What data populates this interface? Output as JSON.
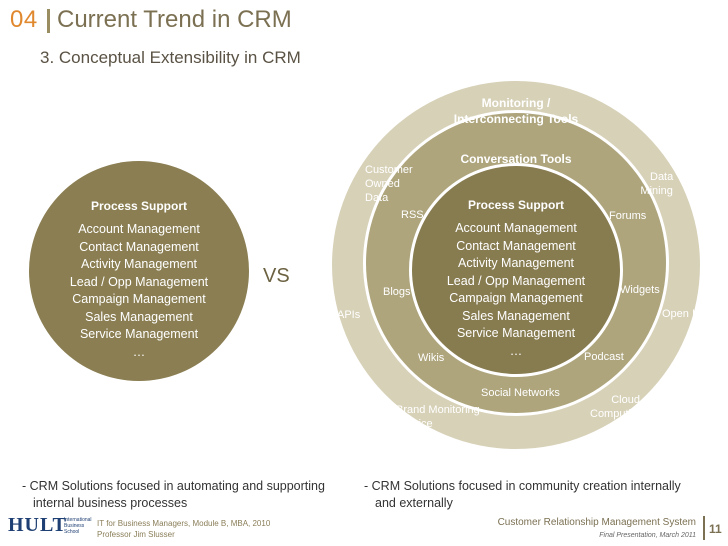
{
  "header": {
    "number": "04",
    "title": "Current Trend in CRM",
    "subtitle": "3. Conceptual Extensibility in CRM"
  },
  "left_circle": {
    "title": "Process Support",
    "items": [
      "Account Management",
      "Contact Management",
      "Activity Management",
      "Lead / Opp Management",
      "Campaign Management",
      "Sales Management",
      "Service Management",
      "…"
    ]
  },
  "vs": "VS",
  "right_diagram": {
    "outer_ring": {
      "title_line1": "Monitoring /",
      "title_line2": "Interconnecting Tools",
      "labels": {
        "apis": "APIs",
        "open_id": "Open ID",
        "data_mining_1": "Data",
        "data_mining_2": "Mining",
        "brand_monitoring_1": "Brand Monitoring",
        "brand_monitoring_2": "Service",
        "cloud_1": "Cloud",
        "cloud_2": "Computing",
        "customer_owned_1": "Customer",
        "customer_owned_2": "Owned",
        "customer_owned_3": "Data"
      }
    },
    "middle_ring": {
      "title": "Conversation Tools",
      "labels": {
        "rss": "RSS",
        "forums": "Forums",
        "blogs": "Blogs",
        "widgets": "Widgets",
        "wikis": "Wikis",
        "podcast": "Podcast",
        "social_networks": "Social Networks"
      }
    },
    "core": {
      "title": "Process Support",
      "items": [
        "Account Management",
        "Contact Management",
        "Activity Management",
        "Lead / Opp Management",
        "Campaign Management",
        "Sales Management",
        "Service Management",
        "…"
      ]
    }
  },
  "bottom": {
    "left_line1": "- CRM Solutions focused in automating and supporting",
    "left_line2": "internal business processes",
    "right_line1": "- CRM Solutions focused in community creation internally",
    "right_line2": "and externally"
  },
  "footer": {
    "logo": "HULT",
    "school_line1": "International",
    "school_line2": "Business",
    "school_line3": "School",
    "course": "IT for Business Managers, Module B, MBA, 2010",
    "professor": "Professor Jim Slusser",
    "right_title": "Customer Relationship Management System",
    "right_sub": "Final Presentation, March 2011",
    "page": "11"
  },
  "colors": {
    "accent_orange": "#e0882e",
    "outer_ring": "#d7d1b8",
    "middle_ring": "#aea57d",
    "core": "#877b50",
    "text_dark": "#7b7052"
  }
}
